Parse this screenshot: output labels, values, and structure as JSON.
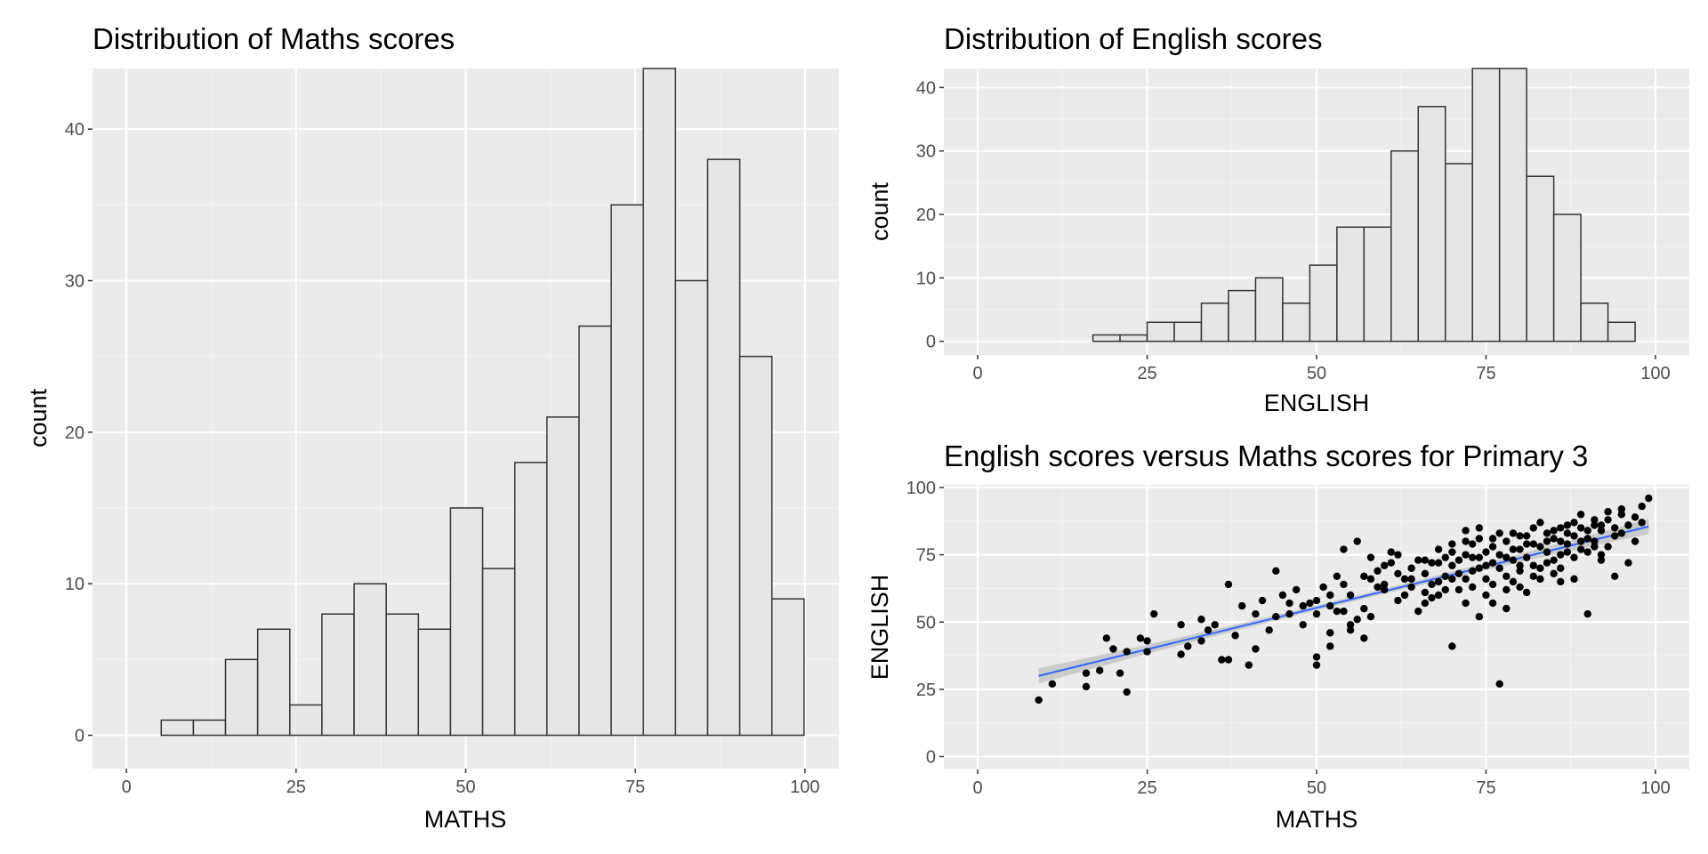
{
  "colors": {
    "panel_bg": "#ebebeb",
    "grid_major": "#ffffff",
    "grid_minor": "#f5f5f5",
    "bar_fill": "#e6e6e6",
    "bar_stroke": "#333333",
    "point": "#000000",
    "smooth_line": "#3366ff",
    "ci_band": "#999999",
    "tick_text": "#4d4d4d"
  },
  "chart_data": [
    {
      "type": "bar",
      "title": "Distribution of Maths scores",
      "xlabel": "MATHS",
      "ylabel": "count",
      "xlim": [
        -5,
        105
      ],
      "ylim": [
        -2.2,
        44
      ],
      "xticks": [
        0,
        25,
        50,
        75,
        100
      ],
      "yticks": [
        0,
        10,
        20,
        30,
        40
      ],
      "bin_width": 4.7368,
      "bin_centers": [
        7.5,
        12.24,
        16.97,
        21.71,
        26.45,
        31.18,
        35.92,
        40.66,
        45.39,
        50.13,
        54.87,
        59.61,
        64.34,
        69.08,
        73.82,
        78.55,
        83.29,
        88.03,
        92.76,
        97.5
      ],
      "values": [
        1,
        1,
        5,
        7,
        2,
        8,
        10,
        8,
        7,
        15,
        11,
        18,
        21,
        27,
        35,
        44,
        30,
        38,
        25,
        9
      ]
    },
    {
      "type": "bar",
      "title": "Distribution of English scores",
      "xlabel": "ENGLISH",
      "ylabel": "count",
      "xlim": [
        -5,
        105
      ],
      "ylim": [
        -2.15,
        43
      ],
      "xticks": [
        0,
        25,
        50,
        75,
        100
      ],
      "yticks": [
        0,
        10,
        20,
        30,
        40
      ],
      "bin_width": 4.0,
      "bin_centers": [
        19,
        23,
        27,
        31,
        35,
        39,
        43,
        47,
        51,
        55,
        59,
        63,
        67,
        71,
        75,
        79,
        83,
        87,
        91,
        95
      ],
      "values": [
        1,
        1,
        3,
        3,
        6,
        8,
        10,
        6,
        12,
        18,
        18,
        30,
        37,
        28,
        43,
        43,
        26,
        20,
        6,
        3
      ]
    },
    {
      "type": "scatter",
      "title": "English scores versus Maths scores for Primary 3",
      "xlabel": "MATHS",
      "ylabel": "ENGLISH",
      "xlim": [
        -5,
        105
      ],
      "ylim": [
        -4.8,
        101
      ],
      "xticks": [
        0,
        25,
        50,
        75,
        100
      ],
      "yticks": [
        0,
        25,
        50,
        75,
        100
      ],
      "smooth": {
        "x": [
          9,
          99
        ],
        "y": [
          30,
          85.5
        ],
        "ci_half_width_ends": 2.8,
        "ci_half_width_mid": 0.9
      },
      "points": [
        [
          9,
          21
        ],
        [
          11,
          27
        ],
        [
          16,
          26
        ],
        [
          16,
          31
        ],
        [
          18,
          32
        ],
        [
          19,
          44
        ],
        [
          20,
          40
        ],
        [
          21,
          31
        ],
        [
          22,
          24
        ],
        [
          22,
          39
        ],
        [
          24,
          44
        ],
        [
          25,
          39
        ],
        [
          25,
          43
        ],
        [
          26,
          53
        ],
        [
          30,
          38
        ],
        [
          30,
          49
        ],
        [
          31,
          41
        ],
        [
          33,
          43
        ],
        [
          33,
          51
        ],
        [
          34,
          47
        ],
        [
          35,
          49
        ],
        [
          36,
          36
        ],
        [
          37,
          36
        ],
        [
          37,
          64
        ],
        [
          38,
          45
        ],
        [
          39,
          56
        ],
        [
          40,
          34
        ],
        [
          41,
          40
        ],
        [
          41,
          53
        ],
        [
          42,
          58
        ],
        [
          43,
          47
        ],
        [
          44,
          52
        ],
        [
          44,
          69
        ],
        [
          45,
          60
        ],
        [
          46,
          57
        ],
        [
          47,
          62
        ],
        [
          48,
          56
        ],
        [
          49,
          57
        ],
        [
          50,
          34
        ],
        [
          50,
          37
        ],
        [
          50,
          53
        ],
        [
          50,
          58
        ],
        [
          51,
          63
        ],
        [
          52,
          56
        ],
        [
          52,
          41
        ],
        [
          52,
          46
        ],
        [
          53,
          54
        ],
        [
          53,
          67
        ],
        [
          54,
          54
        ],
        [
          54,
          77
        ],
        [
          55,
          60
        ],
        [
          55,
          49
        ],
        [
          55,
          47
        ],
        [
          56,
          80
        ],
        [
          56,
          51
        ],
        [
          57,
          44
        ],
        [
          57,
          67
        ],
        [
          57,
          55
        ],
        [
          58,
          74
        ],
        [
          58,
          52
        ],
        [
          59,
          63
        ],
        [
          59,
          69
        ],
        [
          60,
          64
        ],
        [
          60,
          71
        ],
        [
          61,
          72
        ],
        [
          61,
          76
        ],
        [
          62,
          75
        ],
        [
          62,
          58
        ],
        [
          63,
          66
        ],
        [
          64,
          70
        ],
        [
          64,
          63
        ],
        [
          65,
          73
        ],
        [
          65,
          54
        ],
        [
          66,
          61
        ],
        [
          66,
          68
        ],
        [
          67,
          72
        ],
        [
          67,
          59
        ],
        [
          68,
          77
        ],
        [
          68,
          65
        ],
        [
          69,
          74
        ],
        [
          69,
          67
        ],
        [
          70,
          71
        ],
        [
          70,
          41
        ],
        [
          70,
          76
        ],
        [
          71,
          62
        ],
        [
          71,
          68
        ],
        [
          72,
          75
        ],
        [
          72,
          66
        ],
        [
          72,
          57
        ],
        [
          73,
          74
        ],
        [
          73,
          79
        ],
        [
          73,
          63
        ],
        [
          74,
          70
        ],
        [
          74,
          52
        ],
        [
          74,
          85
        ],
        [
          75,
          76
        ],
        [
          75,
          66
        ],
        [
          75,
          60
        ],
        [
          76,
          72
        ],
        [
          76,
          81
        ],
        [
          76,
          64
        ],
        [
          77,
          27
        ],
        [
          77,
          75
        ],
        [
          77,
          70
        ],
        [
          78,
          67
        ],
        [
          78,
          80
        ],
        [
          78,
          55
        ],
        [
          79,
          73
        ],
        [
          79,
          77
        ],
        [
          80,
          82
        ],
        [
          80,
          69
        ],
        [
          80,
          63
        ],
        [
          81,
          74
        ],
        [
          81,
          79
        ],
        [
          82,
          85
        ],
        [
          82,
          71
        ],
        [
          83,
          78
        ],
        [
          83,
          66
        ],
        [
          84,
          76
        ],
        [
          84,
          80
        ],
        [
          85,
          73
        ],
        [
          85,
          81
        ],
        [
          86,
          85
        ],
        [
          86,
          75
        ],
        [
          86,
          65
        ],
        [
          87,
          79
        ],
        [
          87,
          83
        ],
        [
          88,
          87
        ],
        [
          88,
          74
        ],
        [
          89,
          80
        ],
        [
          89,
          90
        ],
        [
          90,
          84
        ],
        [
          90,
          53
        ],
        [
          91,
          88
        ],
        [
          91,
          78
        ],
        [
          92,
          86
        ],
        [
          92,
          73
        ],
        [
          93,
          91
        ],
        [
          94,
          85
        ],
        [
          94,
          67
        ],
        [
          95,
          92
        ],
        [
          96,
          72
        ],
        [
          97,
          89
        ],
        [
          97,
          80
        ],
        [
          98,
          93
        ],
        [
          99,
          96
        ],
        [
          60,
          62
        ],
        [
          63,
          60
        ],
        [
          66,
          73
        ],
        [
          68,
          72
        ],
        [
          70,
          66
        ],
        [
          72,
          80
        ],
        [
          74,
          74
        ],
        [
          76,
          78
        ],
        [
          78,
          74
        ],
        [
          80,
          77
        ],
        [
          82,
          79
        ],
        [
          84,
          83
        ],
        [
          86,
          80
        ],
        [
          88,
          82
        ],
        [
          90,
          81
        ],
        [
          92,
          84
        ],
        [
          94,
          82
        ],
        [
          96,
          86
        ],
        [
          98,
          87
        ],
        [
          79,
          83
        ],
        [
          81,
          82
        ],
        [
          83,
          87
        ],
        [
          85,
          84
        ],
        [
          87,
          86
        ],
        [
          89,
          85
        ],
        [
          91,
          86
        ],
        [
          93,
          88
        ],
        [
          95,
          90
        ],
        [
          67,
          64
        ],
        [
          69,
          62
        ],
        [
          71,
          73
        ],
        [
          73,
          69
        ],
        [
          75,
          71
        ],
        [
          77,
          83
        ],
        [
          79,
          65
        ],
        [
          81,
          61
        ],
        [
          83,
          70
        ],
        [
          85,
          68
        ],
        [
          87,
          76
        ],
        [
          89,
          77
        ],
        [
          91,
          80
        ],
        [
          93,
          78
        ],
        [
          95,
          83
        ],
        [
          46,
          53
        ],
        [
          48,
          49
        ],
        [
          52,
          60
        ],
        [
          54,
          64
        ],
        [
          58,
          66
        ],
        [
          62,
          68
        ],
        [
          64,
          66
        ],
        [
          66,
          57
        ],
        [
          68,
          60
        ],
        [
          70,
          79
        ],
        [
          72,
          84
        ],
        [
          74,
          81
        ],
        [
          76,
          57
        ],
        [
          78,
          62
        ],
        [
          80,
          71
        ],
        [
          82,
          67
        ],
        [
          84,
          72
        ],
        [
          86,
          70
        ],
        [
          88,
          66
        ],
        [
          90,
          76
        ],
        [
          92,
          75
        ]
      ]
    }
  ]
}
